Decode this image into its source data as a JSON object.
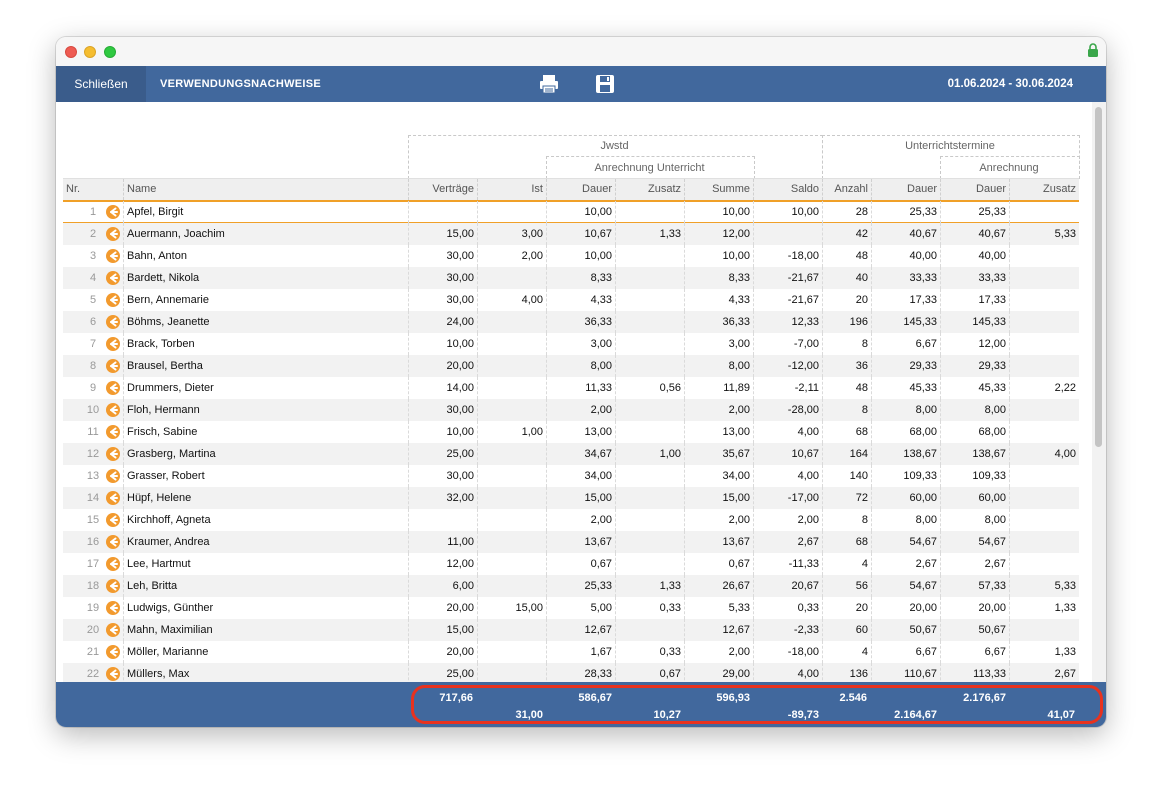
{
  "toolbar": {
    "close_label": "Schließen",
    "title": "VERWENDUNGSNACHWEISE",
    "date_range": "01.06.2024 - 30.06.2024",
    "print_icon": "printer-icon",
    "save_icon": "floppy-disk-icon"
  },
  "groups": {
    "jwstd": "Jwstd",
    "anrechnung_unterricht": "Anrechnung Unterricht",
    "unterrichtstermine": "Unterrichtstermine",
    "anrechnung": "Anrechnung"
  },
  "columns": [
    "Nr.",
    "Name",
    "Verträge",
    "Ist",
    "Dauer",
    "Zusatz",
    "Summe",
    "Saldo",
    "Anzahl",
    "Dauer",
    "Dauer",
    "Zusatz"
  ],
  "rows": [
    [
      "1",
      "Apfel, Birgit",
      "",
      "",
      "10,00",
      "",
      "10,00",
      "10,00",
      "28",
      "25,33",
      "25,33",
      ""
    ],
    [
      "2",
      "Auermann, Joachim",
      "15,00",
      "3,00",
      "10,67",
      "1,33",
      "12,00",
      "",
      "42",
      "40,67",
      "40,67",
      "5,33"
    ],
    [
      "3",
      "Bahn, Anton",
      "30,00",
      "2,00",
      "10,00",
      "",
      "10,00",
      "-18,00",
      "48",
      "40,00",
      "40,00",
      ""
    ],
    [
      "4",
      "Bardett, Nikola",
      "30,00",
      "",
      "8,33",
      "",
      "8,33",
      "-21,67",
      "40",
      "33,33",
      "33,33",
      ""
    ],
    [
      "5",
      "Bern, Annemarie",
      "30,00",
      "4,00",
      "4,33",
      "",
      "4,33",
      "-21,67",
      "20",
      "17,33",
      "17,33",
      ""
    ],
    [
      "6",
      "Böhms, Jeanette",
      "24,00",
      "",
      "36,33",
      "",
      "36,33",
      "12,33",
      "196",
      "145,33",
      "145,33",
      ""
    ],
    [
      "7",
      "Brack, Torben",
      "10,00",
      "",
      "3,00",
      "",
      "3,00",
      "-7,00",
      "8",
      "6,67",
      "12,00",
      ""
    ],
    [
      "8",
      "Brausel, Bertha",
      "20,00",
      "",
      "8,00",
      "",
      "8,00",
      "-12,00",
      "36",
      "29,33",
      "29,33",
      ""
    ],
    [
      "9",
      "Drummers, Dieter",
      "14,00",
      "",
      "11,33",
      "0,56",
      "11,89",
      "-2,11",
      "48",
      "45,33",
      "45,33",
      "2,22"
    ],
    [
      "10",
      "Floh, Hermann",
      "30,00",
      "",
      "2,00",
      "",
      "2,00",
      "-28,00",
      "8",
      "8,00",
      "8,00",
      ""
    ],
    [
      "11",
      "Frisch, Sabine",
      "10,00",
      "1,00",
      "13,00",
      "",
      "13,00",
      "4,00",
      "68",
      "68,00",
      "68,00",
      ""
    ],
    [
      "12",
      "Grasberg, Martina",
      "25,00",
      "",
      "34,67",
      "1,00",
      "35,67",
      "10,67",
      "164",
      "138,67",
      "138,67",
      "4,00"
    ],
    [
      "13",
      "Grasser, Robert",
      "30,00",
      "",
      "34,00",
      "",
      "34,00",
      "4,00",
      "140",
      "109,33",
      "109,33",
      ""
    ],
    [
      "14",
      "Hüpf, Helene",
      "32,00",
      "",
      "15,00",
      "",
      "15,00",
      "-17,00",
      "72",
      "60,00",
      "60,00",
      ""
    ],
    [
      "15",
      "Kirchhoff, Agneta",
      "",
      "",
      "2,00",
      "",
      "2,00",
      "2,00",
      "8",
      "8,00",
      "8,00",
      ""
    ],
    [
      "16",
      "Kraumer, Andrea",
      "11,00",
      "",
      "13,67",
      "",
      "13,67",
      "2,67",
      "68",
      "54,67",
      "54,67",
      ""
    ],
    [
      "17",
      "Lee, Hartmut",
      "12,00",
      "",
      "0,67",
      "",
      "0,67",
      "-11,33",
      "4",
      "2,67",
      "2,67",
      ""
    ],
    [
      "18",
      "Leh, Britta",
      "6,00",
      "",
      "25,33",
      "1,33",
      "26,67",
      "20,67",
      "56",
      "54,67",
      "57,33",
      "5,33"
    ],
    [
      "19",
      "Ludwigs, Günther",
      "20,00",
      "15,00",
      "5,00",
      "0,33",
      "5,33",
      "0,33",
      "20",
      "20,00",
      "20,00",
      "1,33"
    ],
    [
      "20",
      "Mahn, Maximilian",
      "15,00",
      "",
      "12,67",
      "",
      "12,67",
      "-2,33",
      "60",
      "50,67",
      "50,67",
      ""
    ],
    [
      "21",
      "Möller, Marianne",
      "20,00",
      "",
      "1,67",
      "0,33",
      "2,00",
      "-18,00",
      "4",
      "6,67",
      "6,67",
      "1,33"
    ],
    [
      "22",
      "Müllers, Max",
      "25,00",
      "",
      "28,33",
      "0,67",
      "29,00",
      "4,00",
      "136",
      "110,67",
      "113,33",
      "2,67"
    ]
  ],
  "totals": {
    "vertraege": "717,66",
    "ist": "31,00",
    "dauer": "586,67",
    "zusatz": "10,27",
    "summe": "596,93",
    "saldo": "-89,73",
    "anzahl": "2.546",
    "ut_dauer": "2.164,67",
    "anr_dauer": "2.176,67",
    "anr_zusatz": "41,07"
  },
  "colors": {
    "header_blue": "#41689d",
    "accent_orange": "#f29a2e",
    "highlight_red": "#e8321e"
  }
}
